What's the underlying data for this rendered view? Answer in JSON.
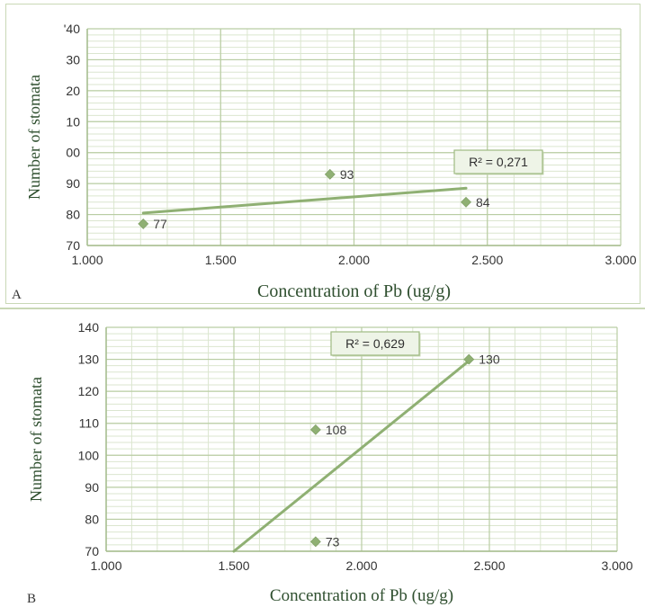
{
  "chart_data": [
    {
      "type": "scatter",
      "panel_label": "A",
      "xlabel": "Concentration of Pb (ug/g)",
      "ylabel": "Number of stomata",
      "xlim": [
        1.0,
        3.0
      ],
      "ylim": [
        70,
        140
      ],
      "x_ticks": [
        "1.000",
        "1.500",
        "2.000",
        "2.500",
        "3.000"
      ],
      "y_ticks": [
        "70",
        "80",
        "90",
        "00",
        "10",
        "20",
        "30",
        "'40"
      ],
      "points": [
        {
          "x": 1.21,
          "y": 77,
          "label": "77"
        },
        {
          "x": 1.91,
          "y": 93,
          "label": "93"
        },
        {
          "x": 2.42,
          "y": 84,
          "label": "84"
        }
      ],
      "trendline": {
        "x": [
          1.21,
          2.42
        ],
        "y": [
          80.5,
          88.5
        ]
      },
      "r_squared": "R² = 0,271",
      "grid": true,
      "color": "#8fb073"
    },
    {
      "type": "scatter",
      "panel_label": "B",
      "xlabel": "Concentration of Pb (ug/g)",
      "ylabel": "Number of stomata",
      "xlim": [
        1.0,
        3.0
      ],
      "ylim": [
        70,
        140
      ],
      "x_ticks": [
        "1.000",
        "1.500",
        "2.000",
        "2.500",
        "3.000"
      ],
      "y_ticks": [
        "70",
        "80",
        "90",
        "100",
        "110",
        "120",
        "130",
        "140"
      ],
      "points": [
        {
          "x": 1.82,
          "y": 108,
          "label": "108"
        },
        {
          "x": 1.82,
          "y": 73,
          "label": "73"
        },
        {
          "x": 2.42,
          "y": 130,
          "label": "130"
        }
      ],
      "trendline": {
        "x": [
          1.5,
          2.42
        ],
        "y": [
          70,
          129.5
        ]
      },
      "r_squared": "R² = 0,629",
      "grid": true,
      "color": "#8fb073"
    }
  ]
}
